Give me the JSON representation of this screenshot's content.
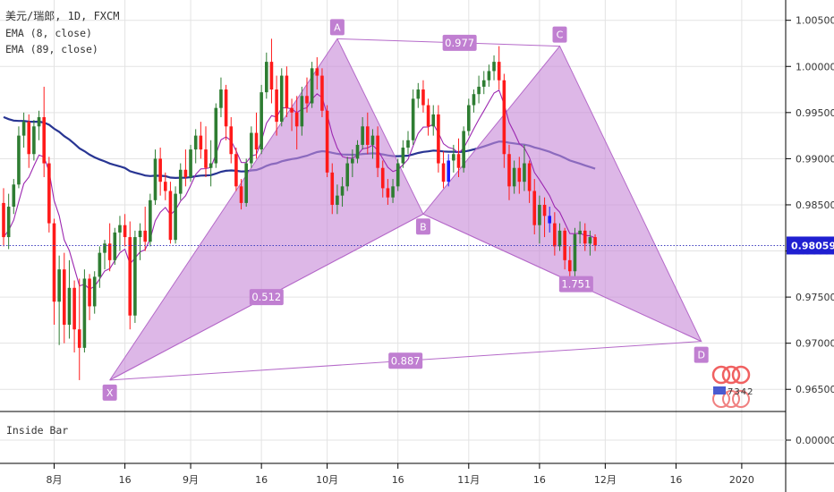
{
  "header": {
    "symbol": "美元/瑞郎, 1D, FXCM",
    "ema_fast": "EMA (8, close)",
    "ema_slow": "EMA (89, close)"
  },
  "indicator_pane": {
    "label": "Inside Bar",
    "tick": "0.00000"
  },
  "price_badge": "0.98059",
  "watermark_text": "7342",
  "colors": {
    "up": "#2e7d32",
    "down": "#ff1a1a",
    "inside": "#1a1aff",
    "ema_fast": "#9c27b0",
    "ema_slow": "#283593",
    "pattern_fill": "#c88ad8",
    "pattern_stroke": "#b56ac9",
    "label_bg": "#c07fd1",
    "price_line": "#3f3fbf",
    "price_badge": "#1f1fd1"
  },
  "chart_data": {
    "type": "candlestick",
    "title": "美元/瑞郎, 1D, FXCM",
    "ylim": [
      0.9626,
      1.0072
    ],
    "yticks": [
      "1.00500",
      "1.00000",
      "0.99500",
      "0.99000",
      "0.98500",
      "0.98000",
      "0.97500",
      "0.97000",
      "0.96500"
    ],
    "xticks": [
      "8月",
      "16",
      "9月",
      "16",
      "10月",
      "16",
      "11月",
      "16",
      "12月",
      "16",
      "2020"
    ],
    "last_price": 0.98059,
    "candles": [
      [
        0.9852,
        0.9868,
        0.9805,
        0.9815
      ],
      [
        0.9815,
        0.9862,
        0.9802,
        0.9848
      ],
      [
        0.9848,
        0.9878,
        0.984,
        0.9872
      ],
      [
        0.9872,
        0.9935,
        0.9868,
        0.9925
      ],
      [
        0.9925,
        0.995,
        0.9912,
        0.994
      ],
      [
        0.994,
        0.9948,
        0.989,
        0.9905
      ],
      [
        0.9905,
        0.9942,
        0.9898,
        0.9935
      ],
      [
        0.9935,
        0.9952,
        0.992,
        0.9945
      ],
      [
        0.9945,
        0.9978,
        0.988,
        0.9895
      ],
      [
        0.9895,
        0.9902,
        0.982,
        0.983
      ],
      [
        0.983,
        0.9835,
        0.972,
        0.9745
      ],
      [
        0.9745,
        0.9795,
        0.9698,
        0.978
      ],
      [
        0.978,
        0.9798,
        0.97,
        0.972
      ],
      [
        0.972,
        0.979,
        0.9705,
        0.976
      ],
      [
        0.976,
        0.9768,
        0.969,
        0.9715
      ],
      [
        0.9715,
        0.977,
        0.966,
        0.9695
      ],
      [
        0.9695,
        0.978,
        0.969,
        0.977
      ],
      [
        0.977,
        0.9775,
        0.9725,
        0.974
      ],
      [
        0.974,
        0.9778,
        0.9732,
        0.9772
      ],
      [
        0.9772,
        0.9805,
        0.976,
        0.9798
      ],
      [
        0.9798,
        0.9812,
        0.978,
        0.9808
      ],
      [
        0.9808,
        0.983,
        0.9778,
        0.979
      ],
      [
        0.979,
        0.9825,
        0.9785,
        0.982
      ],
      [
        0.982,
        0.9838,
        0.98,
        0.9828
      ],
      [
        0.9828,
        0.984,
        0.9805,
        0.9815
      ],
      [
        0.9815,
        0.9832,
        0.9715,
        0.973
      ],
      [
        0.973,
        0.9822,
        0.9722,
        0.9815
      ],
      [
        0.9815,
        0.983,
        0.979,
        0.9822
      ],
      [
        0.9822,
        0.9848,
        0.98,
        0.981
      ],
      [
        0.981,
        0.9862,
        0.9805,
        0.9855
      ],
      [
        0.9855,
        0.991,
        0.985,
        0.99
      ],
      [
        0.99,
        0.9912,
        0.986,
        0.9875
      ],
      [
        0.9875,
        0.9885,
        0.9855,
        0.9865
      ],
      [
        0.9865,
        0.9875,
        0.9808,
        0.9812
      ],
      [
        0.9812,
        0.987,
        0.9808,
        0.9862
      ],
      [
        0.9862,
        0.9895,
        0.9855,
        0.9888
      ],
      [
        0.9888,
        0.991,
        0.987,
        0.988
      ],
      [
        0.988,
        0.9915,
        0.9875,
        0.991
      ],
      [
        0.991,
        0.9932,
        0.9895,
        0.9925
      ],
      [
        0.9925,
        0.994,
        0.99,
        0.991
      ],
      [
        0.991,
        0.9935,
        0.988,
        0.989
      ],
      [
        0.989,
        0.992,
        0.987,
        0.9895
      ],
      [
        0.9895,
        0.996,
        0.989,
        0.9955
      ],
      [
        0.9955,
        0.9988,
        0.9945,
        0.9975
      ],
      [
        0.9975,
        0.998,
        0.992,
        0.9935
      ],
      [
        0.9935,
        0.9945,
        0.9895,
        0.9905
      ],
      [
        0.9905,
        0.9912,
        0.9865,
        0.987
      ],
      [
        0.987,
        0.9878,
        0.9845,
        0.9852
      ],
      [
        0.9852,
        0.99,
        0.9848,
        0.9895
      ],
      [
        0.9895,
        0.9935,
        0.989,
        0.9928
      ],
      [
        0.9928,
        0.995,
        0.99,
        0.991
      ],
      [
        0.991,
        0.998,
        0.9905,
        0.9972
      ],
      [
        0.9972,
        1.0015,
        0.9965,
        1.0005
      ],
      [
        1.0005,
        1.003,
        0.996,
        0.9975
      ],
      [
        0.9975,
        0.999,
        0.9925,
        0.994
      ],
      [
        0.994,
        0.9998,
        0.9935,
        0.999
      ],
      [
        0.999,
        1.0,
        0.9945,
        0.9955
      ],
      [
        0.9955,
        0.9965,
        0.993,
        0.995
      ],
      [
        0.995,
        0.9968,
        0.991,
        0.9935
      ],
      [
        0.9935,
        0.9978,
        0.9925,
        0.9968
      ],
      [
        0.9968,
        0.9988,
        0.995,
        0.996
      ],
      [
        0.996,
        1.0005,
        0.9955,
        0.9998
      ],
      [
        0.9998,
        1.001,
        0.9975,
        0.999
      ],
      [
        0.999,
        0.9998,
        0.9945,
        0.9952
      ],
      [
        0.9952,
        0.9958,
        0.988,
        0.9885
      ],
      [
        0.9885,
        0.9895,
        0.984,
        0.985
      ],
      [
        0.985,
        0.9872,
        0.984,
        0.986
      ],
      [
        0.986,
        0.988,
        0.9848,
        0.987
      ],
      [
        0.987,
        0.9902,
        0.9865,
        0.9895
      ],
      [
        0.9895,
        0.991,
        0.988,
        0.99
      ],
      [
        0.99,
        0.992,
        0.9895,
        0.9915
      ],
      [
        0.9915,
        0.9945,
        0.991,
        0.9935
      ],
      [
        0.9935,
        0.995,
        0.9905,
        0.9915
      ],
      [
        0.9915,
        0.9932,
        0.99,
        0.9925
      ],
      [
        0.9925,
        0.9935,
        0.988,
        0.989
      ],
      [
        0.989,
        0.9898,
        0.9858,
        0.9868
      ],
      [
        0.9868,
        0.9878,
        0.985,
        0.9858
      ],
      [
        0.9858,
        0.9878,
        0.9852,
        0.987
      ],
      [
        0.987,
        0.99,
        0.9865,
        0.9895
      ],
      [
        0.9895,
        0.992,
        0.989,
        0.9912
      ],
      [
        0.9912,
        0.993,
        0.9905,
        0.992
      ],
      [
        0.992,
        0.9975,
        0.9915,
        0.9965
      ],
      [
        0.9965,
        0.9982,
        0.9955,
        0.9975
      ],
      [
        0.9975,
        0.9985,
        0.995,
        0.9958
      ],
      [
        0.9958,
        0.9965,
        0.9925,
        0.9935
      ],
      [
        0.9935,
        0.9958,
        0.9925,
        0.9948
      ],
      [
        0.9948,
        0.9958,
        0.9885,
        0.9895
      ],
      [
        0.9895,
        0.9908,
        0.9868,
        0.9875
      ],
      [
        0.9875,
        0.9905,
        0.987,
        0.9898
      ],
      [
        0.9898,
        0.9915,
        0.9885,
        0.9905
      ],
      [
        0.9905,
        0.9922,
        0.988,
        0.989
      ],
      [
        0.989,
        0.9935,
        0.9885,
        0.993
      ],
      [
        0.993,
        0.9965,
        0.9925,
        0.9958
      ],
      [
        0.9958,
        0.9975,
        0.995,
        0.997
      ],
      [
        0.997,
        0.999,
        0.996,
        0.9978
      ],
      [
        0.9978,
        0.9995,
        0.997,
        0.9985
      ],
      [
        0.9985,
        1.0002,
        0.9978,
        0.9995
      ],
      [
        0.9995,
        1.0012,
        0.9985,
        1.0005
      ],
      [
        1.0005,
        1.0022,
        0.9975,
        0.9985
      ],
      [
        0.9985,
        0.9992,
        0.989,
        0.9905
      ],
      [
        0.9905,
        0.9915,
        0.9855,
        0.987
      ],
      [
        0.987,
        0.9898,
        0.9862,
        0.989
      ],
      [
        0.989,
        0.9902,
        0.9862,
        0.9875
      ],
      [
        0.9875,
        0.9915,
        0.9865,
        0.9895
      ],
      [
        0.9895,
        0.9898,
        0.9852,
        0.9865
      ],
      [
        0.9865,
        0.9878,
        0.9818,
        0.9828
      ],
      [
        0.9828,
        0.986,
        0.9808,
        0.985
      ],
      [
        0.985,
        0.9858,
        0.9815,
        0.9838
      ],
      [
        0.9838,
        0.9848,
        0.982,
        0.983
      ],
      [
        0.983,
        0.9842,
        0.9795,
        0.9805
      ],
      [
        0.9805,
        0.983,
        0.98,
        0.9822
      ],
      [
        0.9822,
        0.9825,
        0.978,
        0.979
      ],
      [
        0.979,
        0.9805,
        0.977,
        0.9778
      ],
      [
        0.9778,
        0.9825,
        0.9772,
        0.9818
      ],
      [
        0.9818,
        0.9832,
        0.9808,
        0.9822
      ],
      [
        0.9822,
        0.983,
        0.98,
        0.9808
      ],
      [
        0.9808,
        0.9822,
        0.9795,
        0.9815
      ],
      [
        0.9815,
        0.9818,
        0.98,
        0.9806
      ]
    ],
    "pattern": {
      "points": [
        {
          "name": "X",
          "bar": 21,
          "price": 0.966
        },
        {
          "name": "A",
          "bar": 66,
          "price": 1.003
        },
        {
          "name": "B",
          "bar": 83,
          "price": 0.984
        },
        {
          "name": "C",
          "bar": 110,
          "price": 1.0022
        },
        {
          "name": "D",
          "bar": 138,
          "price": 0.9702
        }
      ],
      "ratios": [
        {
          "label": "0.512",
          "between": [
            "X",
            "B"
          ]
        },
        {
          "label": "0.977",
          "between": [
            "A",
            "C"
          ]
        },
        {
          "label": "1.751",
          "between": [
            "B",
            "D"
          ]
        },
        {
          "label": "0.887",
          "between": [
            "X",
            "D"
          ]
        }
      ]
    }
  }
}
